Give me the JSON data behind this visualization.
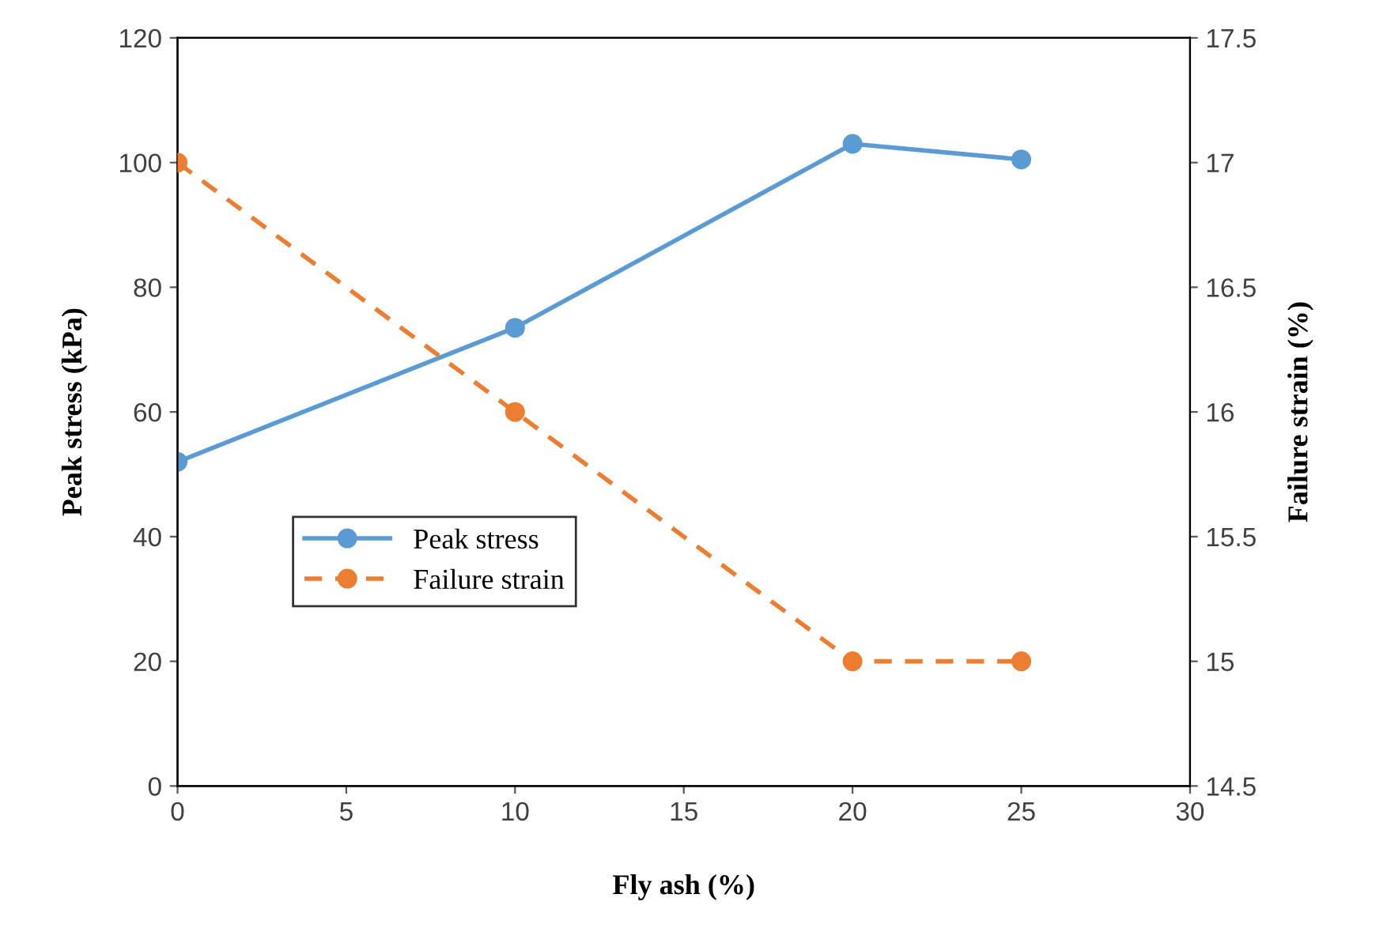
{
  "chart_data": {
    "type": "line",
    "xlabel": "Fly ash (%)",
    "ylabel": "Peak stress (kPa)",
    "y2label": "Failure strain (%)",
    "x": [
      0,
      10,
      20,
      25
    ],
    "series": [
      {
        "name": "Peak stress",
        "color": "#5b9bd5",
        "values": [
          52,
          73.5,
          103,
          100.5
        ],
        "line_style": "solid"
      },
      {
        "name": "Failure strain",
        "color": "#ed7d31",
        "values": [
          17,
          16,
          15,
          15
        ],
        "line_style": "dashed",
        "axis": "y2"
      }
    ],
    "xlim": [
      0,
      30
    ],
    "xticks": [
      0,
      5,
      10,
      15,
      20,
      25,
      30
    ],
    "ylim": [
      0,
      120
    ],
    "yticks": [
      0,
      20,
      40,
      60,
      80,
      100,
      120
    ],
    "y2lim": [
      14.5,
      17.5
    ],
    "y2ticks": [
      14.5,
      15,
      15.5,
      16,
      16.5,
      17,
      17.5
    ],
    "marker": "circle",
    "grid": false,
    "legend": "center left"
  }
}
